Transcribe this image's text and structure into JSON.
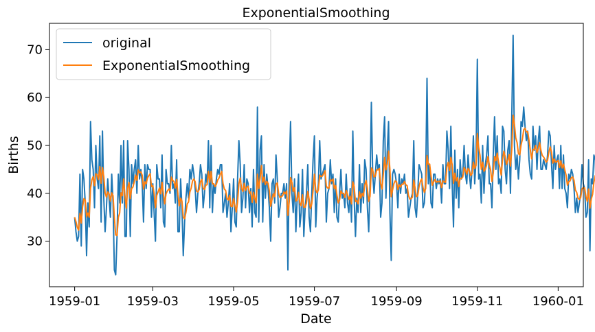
{
  "chart_data": {
    "type": "line",
    "title": "ExponentialSmoothing",
    "xlabel": "Date",
    "ylabel": "Births",
    "x_start": "1959-01-01",
    "x_ticks": [
      "1959-01",
      "1959-03",
      "1959-05",
      "1959-07",
      "1959-09",
      "1959-11",
      "1960-01"
    ],
    "y_ticks": [
      30,
      40,
      50,
      60,
      70
    ],
    "xlim": [
      "1958-12-13",
      "1960-01-20"
    ],
    "ylim": [
      20.5,
      75.5
    ],
    "grid": false,
    "legend_position": "top-left",
    "series": [
      {
        "name": "original",
        "color": "#1f77b4",
        "values": [
          35,
          32,
          30,
          31,
          44,
          29,
          45,
          43,
          38,
          27,
          38,
          33,
          55,
          47,
          45,
          37,
          50,
          43,
          41,
          52,
          34,
          53,
          39,
          32,
          37,
          43,
          39,
          35,
          44,
          38,
          24,
          23,
          31,
          44,
          38,
          50,
          38,
          51,
          31,
          31,
          51,
          45,
          31,
          46,
          42,
          45,
          47,
          40,
          50,
          43,
          45,
          42,
          34,
          46,
          41,
          46,
          45,
          45,
          35,
          42,
          36,
          30,
          46,
          43,
          43,
          37,
          48,
          34,
          33,
          45,
          42,
          42,
          40,
          50,
          41,
          42,
          38,
          47,
          32,
          32,
          43,
          37,
          27,
          34,
          39,
          42,
          39,
          45,
          43,
          46,
          44,
          41,
          36,
          40,
          42,
          46,
          44,
          37,
          40,
          44,
          42,
          51,
          37,
          50,
          36,
          42,
          40,
          43,
          45,
          44,
          46,
          46,
          36,
          38,
          40,
          35,
          38,
          42,
          32,
          37,
          43,
          34,
          33,
          43,
          51,
          46,
          36,
          39,
          46,
          37,
          43,
          42,
          36,
          41,
          33,
          45,
          36,
          35,
          58,
          34,
          49,
          52,
          34,
          46,
          39,
          44,
          41,
          37,
          30,
          42,
          43,
          38,
          48,
          43,
          35,
          37,
          40,
          40,
          42,
          39,
          42,
          24,
          45,
          55,
          40,
          36,
          43,
          32,
          39,
          44,
          33,
          36,
          45,
          31,
          37,
          40,
          46,
          35,
          32,
          40,
          47,
          52,
          33,
          39,
          42,
          51,
          43,
          44,
          45,
          46,
          34,
          40,
          41,
          47,
          42,
          44,
          36,
          43,
          35,
          34,
          40,
          45,
          39,
          40,
          37,
          44,
          38,
          36,
          41,
          34,
          53,
          39,
          31,
          39,
          36,
          46,
          36,
          42,
          38,
          47,
          45,
          37,
          32,
          42,
          59,
          44,
          40,
          44,
          48,
          45,
          46,
          35,
          38,
          51,
          56,
          39,
          49,
          55,
          36,
          26,
          44,
          45,
          44,
          42,
          37,
          44,
          40,
          43,
          42,
          44,
          40,
          41,
          35,
          37,
          39,
          40,
          51,
          37,
          35,
          40,
          46,
          45,
          44,
          37,
          38,
          43,
          64,
          42,
          46,
          38,
          37,
          44,
          44,
          41,
          43,
          42,
          43,
          38,
          46,
          42,
          42,
          53,
          49,
          41,
          54,
          42,
          33,
          49,
          39,
          45,
          37,
          47,
          43,
          44,
          50,
          44,
          42,
          48,
          44,
          41,
          45,
          52,
          42,
          47,
          68,
          43,
          44,
          38,
          50,
          40,
          46,
          48,
          52,
          42,
          42,
          37,
          48,
          56,
          45,
          52,
          42,
          43,
          40,
          54,
          53,
          45,
          42,
          49,
          51,
          40,
          56,
          73,
          50,
          45,
          48,
          43,
          47,
          55,
          54,
          58,
          54,
          51,
          53,
          47,
          44,
          43,
          54,
          49,
          52,
          45,
          51,
          54,
          45,
          45,
          47,
          46,
          45,
          48,
          53,
          52,
          46,
          41,
          50,
          45,
          47,
          48,
          41,
          50,
          41,
          48,
          41,
          40,
          37,
          44,
          43,
          45,
          44,
          41,
          36,
          39,
          36,
          38,
          40,
          46,
          42,
          41,
          35,
          36,
          47,
          28,
          43,
          42,
          48,
          47,
          38,
          45,
          45,
          47,
          37,
          44,
          49,
          44,
          47,
          45,
          39,
          47,
          44,
          50,
          49,
          41,
          39,
          41,
          40,
          35,
          40,
          34,
          35,
          40,
          42,
          43,
          40,
          46,
          33,
          46,
          45,
          52,
          39,
          41,
          42,
          43,
          41,
          38,
          37,
          50,
          49,
          53,
          42,
          40,
          44,
          37,
          38,
          47,
          42,
          41,
          36,
          50,
          35,
          44,
          39,
          36,
          43,
          43,
          40,
          55,
          38,
          48,
          45,
          42,
          38,
          44,
          34,
          38,
          37,
          48,
          43,
          45,
          42,
          39,
          42,
          40,
          45,
          41,
          42,
          52,
          51,
          48,
          51,
          44,
          47,
          52,
          55,
          50
        ]
      },
      {
        "name": "ExponentialSmoothing",
        "color": "#ff7f0e",
        "values": [
          35.0,
          34.1,
          32.9,
          32.3,
          35.8,
          33.8,
          37.2,
          38.9,
          38.6,
          35.1,
          35.9,
          35.0,
          41.0,
          42.8,
          43.5,
          41.6,
          44.1,
          43.8,
          42.9,
          45.6,
          42.1,
          45.4,
          43.5,
          40.1,
          39.2,
          40.3,
          39.9,
          38.4,
          40.1,
          39.5,
          34.9,
          31.3,
          31.2,
          35.0,
          35.9,
          40.1,
          39.5,
          43.0,
          39.4,
          36.9,
          41.1,
          42.3,
          38.9,
          41.0,
          41.3,
          42.4,
          43.8,
          42.7,
          44.9,
          44.3,
          44.5,
          43.8,
          40.9,
          42.4,
          42.0,
          43.2,
          43.7,
          44.1,
          41.4,
          41.6,
          40.0,
          37.0,
          39.6,
          40.3,
          41.1,
          39.9,
          42.3,
          39.8,
          37.8,
          39.9,
          40.5,
          40.9,
          40.6,
          43.4,
          42.7,
          42.5,
          41.1,
          42.9,
          39.7,
          37.4,
          39.0,
          38.4,
          35.0,
          34.7,
          36.0,
          37.8,
          38.2,
          40.3,
          41.1,
          42.6,
          43.0,
          42.4,
          40.5,
          40.3,
          40.8,
          42.4,
          42.9,
          41.1,
          40.8,
          41.7,
          41.8,
          44.6,
          42.3,
          44.6,
          42.0,
          42.0,
          41.4,
          41.9,
          42.8,
          43.2,
          44.0,
          44.6,
          42.1,
          40.9,
          40.6,
          38.9,
          38.6,
          39.6,
          37.3,
          37.2,
          38.9,
          37.4,
          36.1,
          38.2,
          42.0,
          43.2,
          41.0,
          40.4,
          42.1,
          40.6,
          41.3,
          41.5,
          40.0,
          40.3,
          38.1,
          40.2,
          39.0,
          38.0,
          44.0,
          41.0,
          43.1,
          45.8,
          42.3,
          43.4,
          41.8,
          42.5,
          42.1,
          40.5,
          37.3,
          38.7,
          39.9,
          39.3,
          41.9,
          42.2,
          40.0,
          39.1,
          39.3,
          39.5,
          40.3,
          39.9,
          40.5,
          35.4,
          38.3,
          43.3,
          42.3,
          40.4,
          41.2,
          38.4,
          38.6,
          40.2,
          38.0,
          37.4,
          39.7,
          37.1,
          37.1,
          38.0,
          40.4,
          38.8,
          36.8,
          37.8,
          40.6,
          44.0,
          40.7,
          40.1,
          40.7,
          43.8,
          43.5,
          43.6,
          44.1,
          44.7,
          41.5,
          41.1,
          41.1,
          42.9,
          42.6,
          43.0,
          41.0,
          41.6,
          39.6,
          38.0,
          38.6,
          40.5,
          40.0,
          40.0,
          39.1,
          40.6,
          39.8,
          38.7,
          39.4,
          37.8,
          42.4,
          41.4,
          38.3,
          38.5,
          37.8,
          40.3,
          39.0,
          40.0,
          39.4,
          41.7,
          42.7,
          41.0,
          38.3,
          39.4,
          45.3,
          44.9,
          43.4,
          43.6,
          44.9,
          44.9,
          45.2,
          42.1,
          40.9,
          43.9,
          47.5,
          44.9,
          46.1,
          48.8,
          45.0,
          39.3,
          40.7,
          42.0,
          42.6,
          42.4,
          40.8,
          41.8,
          41.3,
          41.9,
          41.9,
          42.5,
          41.8,
          41.6,
          39.6,
          38.8,
          38.9,
          39.2,
          42.8,
          41.1,
          39.3,
          39.5,
          41.4,
          42.5,
          43.0,
          41.2,
          40.2,
          41.0,
          47.9,
          46.1,
          46.1,
          43.7,
          41.7,
          42.4,
          42.9,
          42.3,
          42.5,
          42.4,
          42.6,
          41.2,
          42.6,
          42.4,
          42.3,
          45.5,
          46.5,
          44.8,
          47.5,
          46.0,
          42.1,
          44.2,
          42.6,
          43.3,
          41.4,
          43.1,
          43.1,
          43.4,
          45.4,
          44.9,
          44.0,
          45.2,
          44.8,
          43.7,
          44.1,
          46.5,
          45.2,
          45.8,
          52.5,
          49.6,
          48.0,
          45.0,
          46.5,
          44.6,
          45.0,
          45.9,
          47.7,
          46.0,
          44.9,
          42.5,
          44.2,
          47.7,
          46.8,
          48.4,
          46.5,
          45.4,
          43.8,
          46.9,
          48.8,
          47.7,
          46.0,
          46.9,
          48.1,
          45.7,
          49.2,
          56.3,
          54.4,
          51.6,
          50.6,
          48.3,
          48.0,
          50.1,
          51.3,
          53.3,
          53.6,
          52.8,
          52.9,
          51.1,
          49.0,
          47.2,
          49.2,
          49.1,
          50.0,
          48.5,
          49.3,
          50.6,
          49.0,
          47.9,
          47.6,
          47.1,
          46.5,
          46.9,
          48.6,
          49.7,
          48.6,
          46.3,
          47.2,
          46.5,
          46.6,
          46.9,
          45.4,
          46.8,
          45.3,
          46.1,
          44.9,
          43.8,
          41.7,
          42.4,
          42.6,
          43.3,
          43.4,
          42.7,
          40.7,
          40.2,
          39.0,
          38.7,
          39.1,
          40.9,
          41.2,
          41.1,
          39.3,
          38.3,
          40.9,
          36.9,
          38.8,
          39.8,
          42.3,
          43.7,
          42.0,
          43.0,
          43.6,
          44.6,
          42.3,
          42.8,
          44.9,
          44.6,
          45.3,
          45.2,
          43.3,
          44.5,
          44.3,
          46.0,
          46.9,
          45.1,
          43.2,
          42.5,
          41.8,
          39.8,
          39.9,
          38.1,
          37.2,
          38.0,
          39.4,
          40.5,
          40.4,
          41.9,
          39.2,
          41.3,
          42.4,
          45.3,
          43.4,
          42.7,
          42.5,
          42.6,
          42.1,
          40.9,
          39.7,
          42.8,
          44.6,
          47.1,
          45.6,
          44.0,
          44.0,
          42.0,
          41.0,
          42.9,
          42.6,
          42.1,
          40.3,
          43.2,
          40.7,
          41.7,
          40.9,
          39.4,
          40.5,
          41.3,
          40.9,
          45.1,
          43.0,
          44.5,
          44.7,
          43.9,
          42.1,
          42.7,
          40.1,
          39.5,
          38.8,
          41.6,
          42.0,
          42.9,
          42.6,
          41.5,
          41.7,
          41.2,
          42.3,
          41.9,
          41.9,
          45.0,
          46.8,
          47.2,
          48.4,
          47.1,
          47.1,
          48.5,
          50.5,
          50.3
        ]
      }
    ]
  }
}
